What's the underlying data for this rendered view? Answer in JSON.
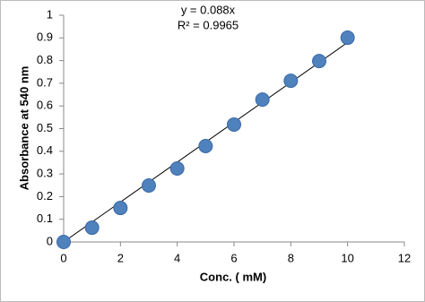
{
  "chart_data": {
    "type": "scatter",
    "x_label": "Conc. ( mM)",
    "y_label": "Absorbance at 540 nm",
    "x": [
      0,
      1,
      2,
      3,
      4,
      5,
      6,
      7,
      8,
      9,
      10
    ],
    "values": [
      0,
      0.063,
      0.15,
      0.249,
      0.324,
      0.423,
      0.518,
      0.628,
      0.711,
      0.798,
      0.901
    ],
    "color": "#4f81bd",
    "xlim": [
      0,
      12
    ],
    "xticks": [
      0,
      2,
      4,
      6,
      8,
      10,
      12
    ],
    "ylim": [
      0,
      1
    ],
    "yticks": [
      0,
      0.1,
      0.2,
      0.3,
      0.4,
      0.5,
      0.6,
      0.7,
      0.8,
      0.9,
      1
    ],
    "grid": false,
    "trendline": {
      "equation": "y = 0.088x",
      "r_squared": "R² = 0.9965",
      "slope": 0.088
    }
  }
}
